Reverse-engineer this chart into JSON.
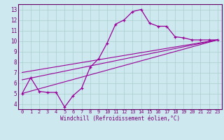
{
  "xlabel": "Windchill (Refroidissement éolien,°C)",
  "bg_color": "#cde8ee",
  "line_color": "#990099",
  "grid_color": "#aacfcc",
  "axis_color": "#770077",
  "spine_color": "#660066",
  "xlim": [
    -0.5,
    23.5
  ],
  "ylim": [
    3.5,
    13.5
  ],
  "xticks": [
    0,
    1,
    2,
    3,
    4,
    5,
    6,
    7,
    8,
    9,
    10,
    11,
    12,
    13,
    14,
    15,
    16,
    17,
    18,
    19,
    20,
    21,
    22,
    23
  ],
  "yticks": [
    4,
    5,
    6,
    7,
    8,
    9,
    10,
    11,
    12,
    13
  ],
  "line1_x": [
    0,
    1,
    2,
    3,
    4,
    5,
    6,
    7,
    8,
    9,
    10,
    11,
    12,
    13,
    14,
    15,
    16,
    17,
    18,
    19,
    20,
    21,
    22,
    23
  ],
  "line1_y": [
    5.0,
    6.5,
    5.2,
    5.1,
    5.1,
    3.7,
    4.8,
    5.5,
    7.5,
    8.3,
    9.8,
    11.6,
    12.0,
    12.8,
    13.0,
    11.7,
    11.4,
    11.4,
    10.4,
    10.3,
    10.1,
    10.1,
    10.1,
    10.1
  ],
  "line2_x": [
    0,
    23
  ],
  "line2_y": [
    5.0,
    10.1
  ],
  "line3_x": [
    0,
    23
  ],
  "line3_y": [
    6.3,
    10.1
  ],
  "line4_x": [
    0,
    23
  ],
  "line4_y": [
    7.0,
    10.1
  ],
  "tick_fontsize": 5.0,
  "xlabel_fontsize": 5.5
}
